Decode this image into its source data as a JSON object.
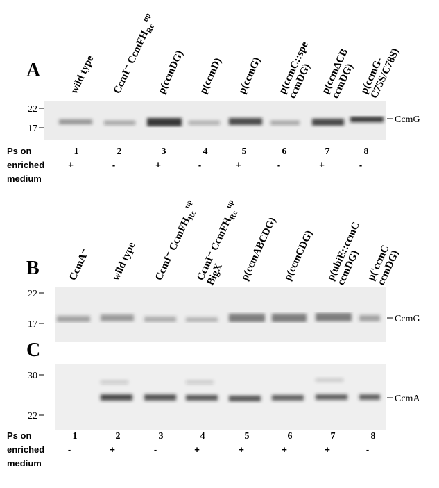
{
  "panels": {
    "A": {
      "letter": "A",
      "lanes": [
        [
          "wild type"
        ],
        [
          {
            "main": "CcmI⁻ CcmFH",
            "sub": "Rc",
            "sup": "up"
          }
        ],
        [
          "p(ccmDG)"
        ],
        [
          "p(ccmD)"
        ],
        [
          "p(ccmG)"
        ],
        [
          "p(ccmC::spe",
          "ccmDG)"
        ],
        [
          "p(ccmΔCB",
          "ccmDG)"
        ],
        [
          "p(ccmG-",
          "C75S/C78S)"
        ]
      ],
      "markers": [
        "22",
        "17"
      ],
      "band": "CcmG",
      "numbers": [
        "1",
        "2",
        "3",
        "4",
        "5",
        "6",
        "7",
        "8"
      ],
      "ps_label": [
        "Ps on",
        "enriched",
        "medium"
      ],
      "ps": [
        "+",
        "-",
        "+",
        "-",
        "+",
        "-",
        "+",
        "-"
      ]
    },
    "B": {
      "letter": "B",
      "lanes": [
        [
          "CcmA⁻"
        ],
        [
          "wild type"
        ],
        [
          {
            "main": "CcmI⁻ CcmFH",
            "sub": "Rc",
            "sup": "up"
          }
        ],
        [
          {
            "main": "CcmI⁻ CcmFH",
            "sub": "Rc",
            "sup": "up"
          },
          "BigX"
        ],
        [
          "p(ccmABCDG)"
        ],
        [
          "p(ccmCDG)"
        ],
        [
          "p(ubiE::ccmC",
          "ccmDG)"
        ],
        [
          "p('ccmC",
          "ccmDG)"
        ]
      ],
      "markers": [
        "22",
        "17"
      ],
      "band": "CcmG"
    },
    "C": {
      "letter": "C",
      "markers": [
        "30",
        "22"
      ],
      "band": "CcmA",
      "numbers": [
        "1",
        "2",
        "3",
        "4",
        "5",
        "6",
        "7",
        "8"
      ],
      "ps_label": [
        "Ps on",
        "enriched",
        "medium"
      ],
      "ps": [
        "-",
        "+",
        "-",
        "+",
        "+",
        "+",
        "+",
        "-"
      ]
    }
  }
}
